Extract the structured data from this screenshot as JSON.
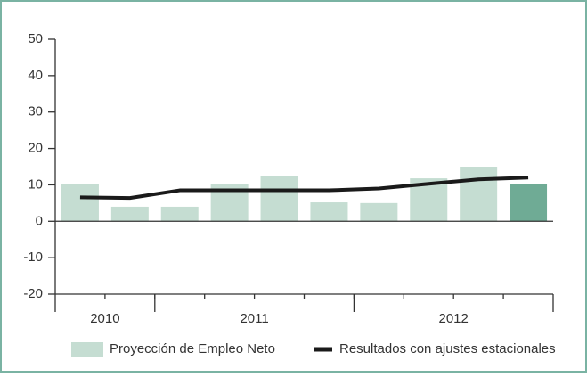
{
  "chart_data": {
    "type": "bar_line",
    "categories": [
      null,
      null,
      null,
      null,
      null,
      null,
      null,
      null,
      null,
      null
    ],
    "groups": [
      {
        "label": "2010",
        "size": 2
      },
      {
        "label": "2011",
        "size": 4
      },
      {
        "label": "2012",
        "size": 4
      }
    ],
    "series": [
      {
        "name": "Proyección de Empleo Neto",
        "type": "bar",
        "colors": [
          "#c5ddd2",
          "#c5ddd2",
          "#c5ddd2",
          "#c5ddd2",
          "#c5ddd2",
          "#c5ddd2",
          "#c5ddd2",
          "#c5ddd2",
          "#c5ddd2",
          "#6fab95"
        ],
        "values": [
          10.3,
          4,
          4,
          10.3,
          12.5,
          5.2,
          5,
          11.8,
          15,
          10.3
        ]
      },
      {
        "name": "Resultados con ajustes estacionales",
        "type": "line",
        "color": "#1a1a1a",
        "values": [
          6.6,
          6.4,
          8.5,
          8.5,
          8.5,
          8.5,
          9,
          10.3,
          11.5,
          12
        ]
      }
    ],
    "ylim": [
      -20,
      50
    ],
    "yticks": [
      -20,
      -10,
      0,
      10,
      20,
      30,
      40,
      50
    ],
    "grid": false
  }
}
